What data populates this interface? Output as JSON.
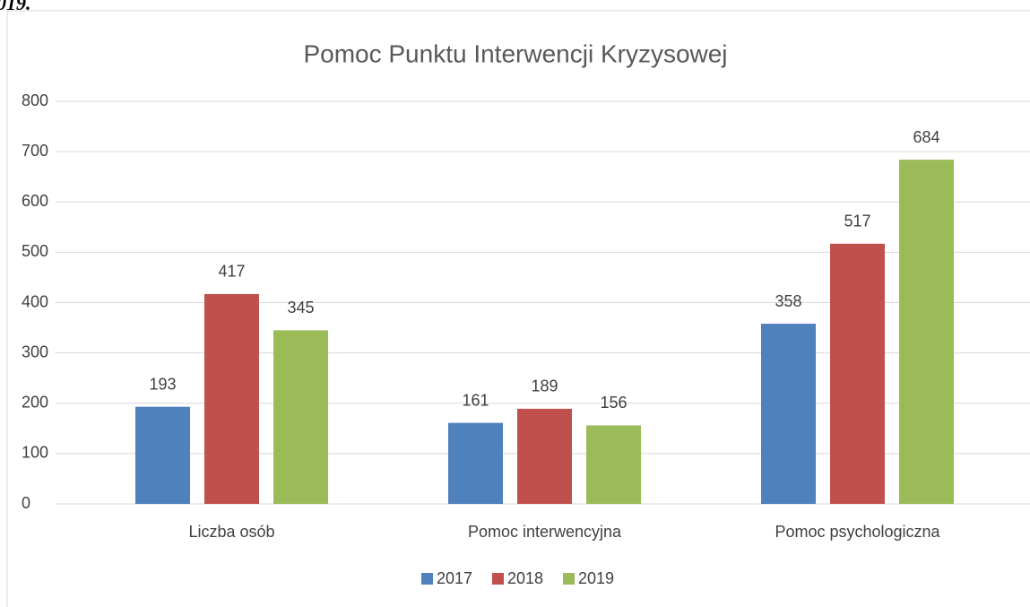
{
  "caption": "019.",
  "chart_data": {
    "type": "bar",
    "title": "Pomoc Punktu Interwencji Kryzysowej",
    "categories": [
      "Liczba osób",
      "Pomoc interwencyjna",
      "Pomoc psychologiczna"
    ],
    "series": [
      {
        "name": "2017",
        "color": "#4f81bd",
        "values": [
          193,
          161,
          358
        ]
      },
      {
        "name": "2018",
        "color": "#c0504d",
        "values": [
          417,
          189,
          517
        ]
      },
      {
        "name": "2019",
        "color": "#9bbb59",
        "values": [
          345,
          156,
          684
        ]
      }
    ],
    "ylim": [
      0,
      800
    ],
    "yticks": [
      0,
      100,
      200,
      300,
      400,
      500,
      600,
      700,
      800
    ],
    "grid": true,
    "legend": "bottom",
    "data_labels": true
  }
}
